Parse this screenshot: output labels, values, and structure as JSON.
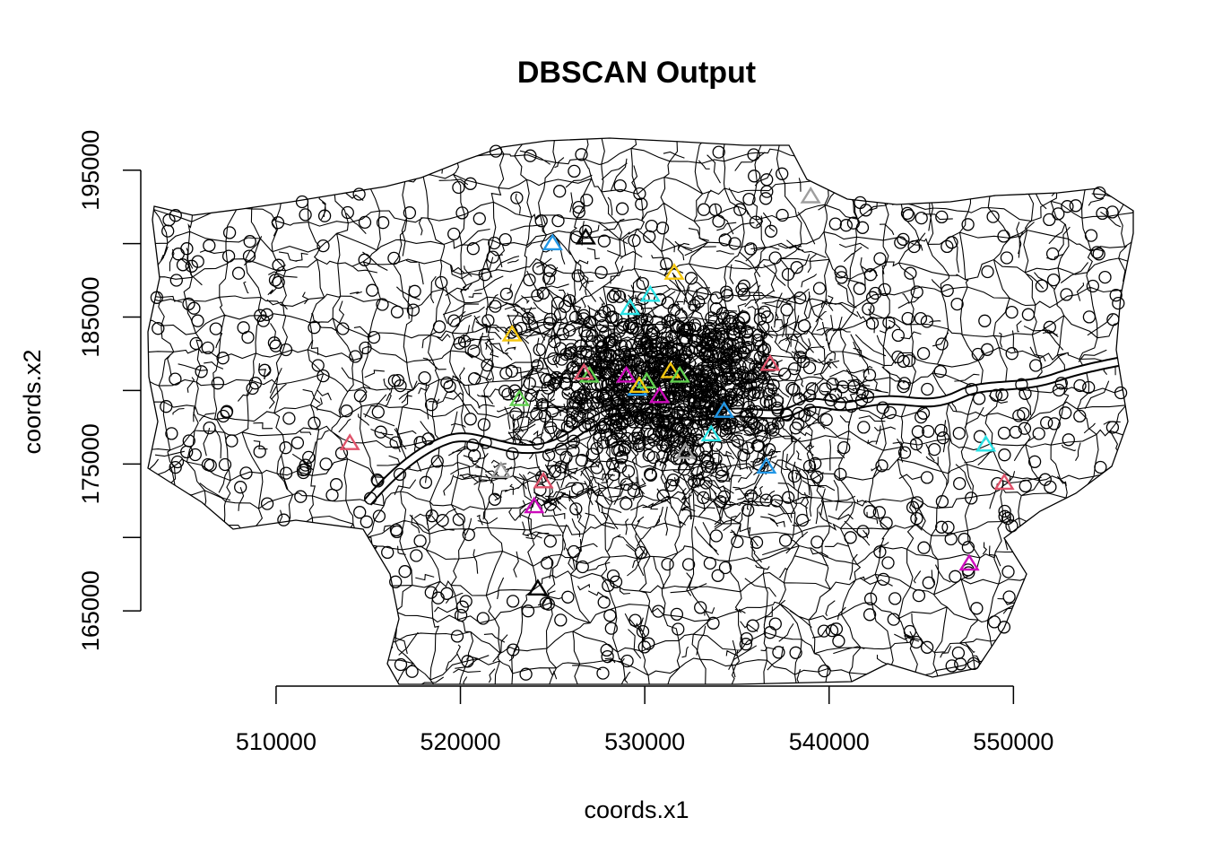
{
  "chart_data": {
    "type": "scatter",
    "title": "DBSCAN Output",
    "xlabel": "coords.x1",
    "ylabel": "coords.x2",
    "xlim": [
      503000,
      556500
    ],
    "ylim": [
      160000,
      197000
    ],
    "x_ticks": [
      {
        "value": 510000,
        "label": "510000"
      },
      {
        "value": 520000,
        "label": "520000"
      },
      {
        "value": 530000,
        "label": "530000"
      },
      {
        "value": 540000,
        "label": "540000"
      },
      {
        "value": 550000,
        "label": "550000"
      }
    ],
    "y_ticks": [
      {
        "value": 165000,
        "label": "165000"
      },
      {
        "value": 175000,
        "label": "175000"
      },
      {
        "value": 185000,
        "label": "185000"
      },
      {
        "value": 195000,
        "label": "195000"
      }
    ],
    "y_minor_ticks": [
      170000,
      180000,
      190000
    ],
    "noise_color": "#000000",
    "cluster_points": [
      {
        "x": 525000,
        "y": 190000,
        "color": "#2297E6"
      },
      {
        "x": 526800,
        "y": 190400,
        "color": "#000000"
      },
      {
        "x": 539000,
        "y": 193200,
        "color": "#9E9E9E"
      },
      {
        "x": 531600,
        "y": 188000,
        "color": "#F5C710"
      },
      {
        "x": 530300,
        "y": 186500,
        "color": "#28E2E5"
      },
      {
        "x": 529200,
        "y": 185600,
        "color": "#28E2E5"
      },
      {
        "x": 522800,
        "y": 183800,
        "color": "#F5C710"
      },
      {
        "x": 536800,
        "y": 181800,
        "color": "#DF536B"
      },
      {
        "x": 527000,
        "y": 181000,
        "color": "#61D04F"
      },
      {
        "x": 526700,
        "y": 181200,
        "color": "#DF536B"
      },
      {
        "x": 529000,
        "y": 181000,
        "color": "#CD0BBC"
      },
      {
        "x": 529600,
        "y": 180100,
        "color": "#2297E6"
      },
      {
        "x": 530100,
        "y": 180600,
        "color": "#61D04F"
      },
      {
        "x": 530800,
        "y": 179600,
        "color": "#CD0BBC"
      },
      {
        "x": 531400,
        "y": 181300,
        "color": "#F5C710"
      },
      {
        "x": 531900,
        "y": 181000,
        "color": "#61D04F"
      },
      {
        "x": 529700,
        "y": 180300,
        "color": "#F5C710"
      },
      {
        "x": 534300,
        "y": 178600,
        "color": "#2297E6"
      },
      {
        "x": 523200,
        "y": 179400,
        "color": "#61D04F"
      },
      {
        "x": 533600,
        "y": 177000,
        "color": "#28E2E5"
      },
      {
        "x": 514000,
        "y": 176400,
        "color": "#DF536B"
      },
      {
        "x": 536600,
        "y": 174800,
        "color": "#2297E6"
      },
      {
        "x": 532200,
        "y": 175800,
        "color": "#9E9E9E"
      },
      {
        "x": 522200,
        "y": 174500,
        "color": "#9E9E9E"
      },
      {
        "x": 524500,
        "y": 173800,
        "color": "#DF536B"
      },
      {
        "x": 524000,
        "y": 172100,
        "color": "#CD0BBC"
      },
      {
        "x": 548500,
        "y": 176300,
        "color": "#28E2E5"
      },
      {
        "x": 549500,
        "y": 173700,
        "color": "#DF536B"
      },
      {
        "x": 547600,
        "y": 168200,
        "color": "#CD0BBC"
      },
      {
        "x": 524200,
        "y": 166500,
        "color": "#000000"
      }
    ],
    "grid": false,
    "legend": "none"
  }
}
